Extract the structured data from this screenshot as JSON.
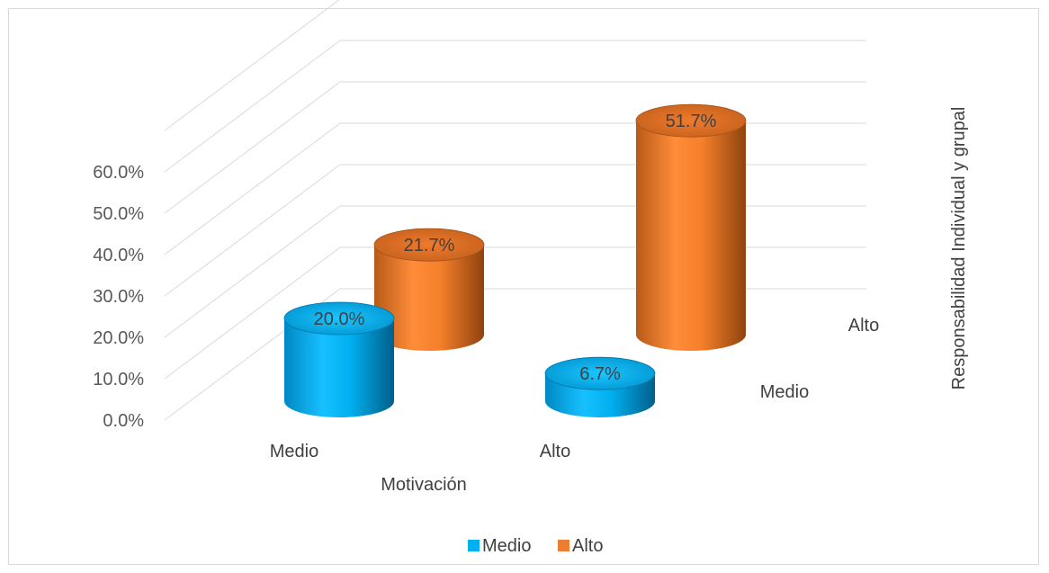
{
  "chart_data": {
    "type": "bar",
    "variant": "3d-cylinder",
    "categories": [
      "Medio",
      "Alto"
    ],
    "series": [
      {
        "name": "Medio",
        "values": [
          20.0,
          6.7
        ],
        "color": "#00b0f0"
      },
      {
        "name": "Alto",
        "values": [
          21.7,
          51.7
        ],
        "color": "#ed7d31"
      }
    ],
    "data_labels": [
      [
        "20.0%",
        "6.7%"
      ],
      [
        "21.7%",
        "51.7%"
      ]
    ],
    "yticks": [
      "0.0%",
      "10.0%",
      "20.0%",
      "30.0%",
      "40.0%",
      "50.0%",
      "60.0%"
    ],
    "ylim": [
      0,
      60
    ],
    "xlabel": "Motivación",
    "zlabel": "Responsabilidad Individual y grupal",
    "depth_labels": [
      "Medio",
      "Alto"
    ],
    "legend": {
      "position": "bottom",
      "entries": [
        "Medio",
        "Alto"
      ]
    },
    "grid": true
  }
}
